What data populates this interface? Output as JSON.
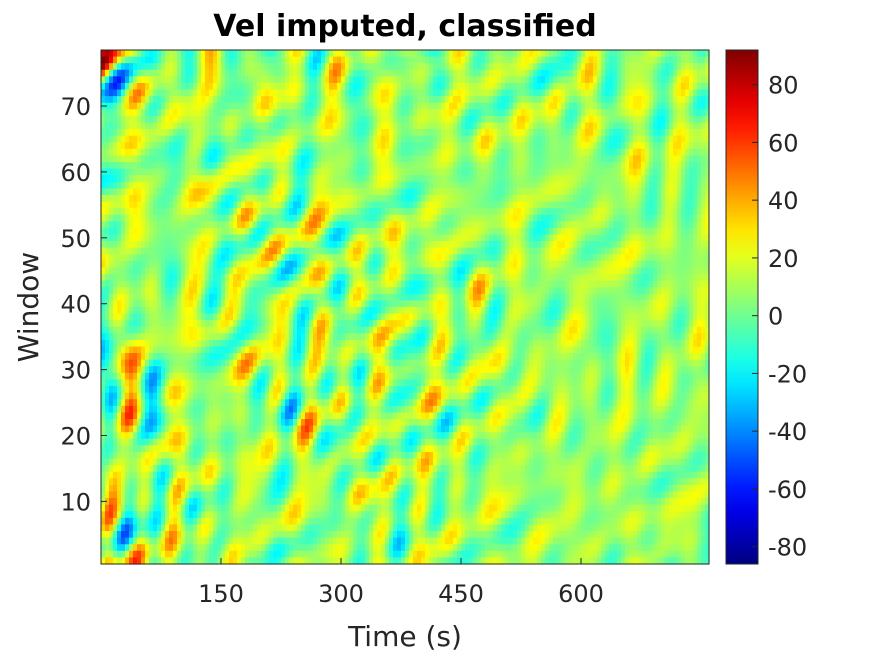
{
  "chart_data": {
    "type": "heatmap",
    "title": "Vel imputed, classified",
    "xlabel": "Time (s)",
    "ylabel": "Window",
    "xlim": [
      0,
      760
    ],
    "ylim": [
      0.5,
      78.5
    ],
    "xticks": [
      150,
      300,
      450,
      600
    ],
    "yticks": [
      10,
      20,
      30,
      40,
      50,
      60,
      70
    ],
    "colormap": "jet",
    "clim": [
      -86,
      92
    ],
    "colorbar_ticks": [
      80,
      60,
      40,
      20,
      0,
      -20,
      -40,
      -60,
      -80
    ],
    "grid": false,
    "notes_visible": "Dense velocity field; stronger positive/negative structure at early times and low-to-mid windows, weaker fluctuations after ~450 s."
  }
}
